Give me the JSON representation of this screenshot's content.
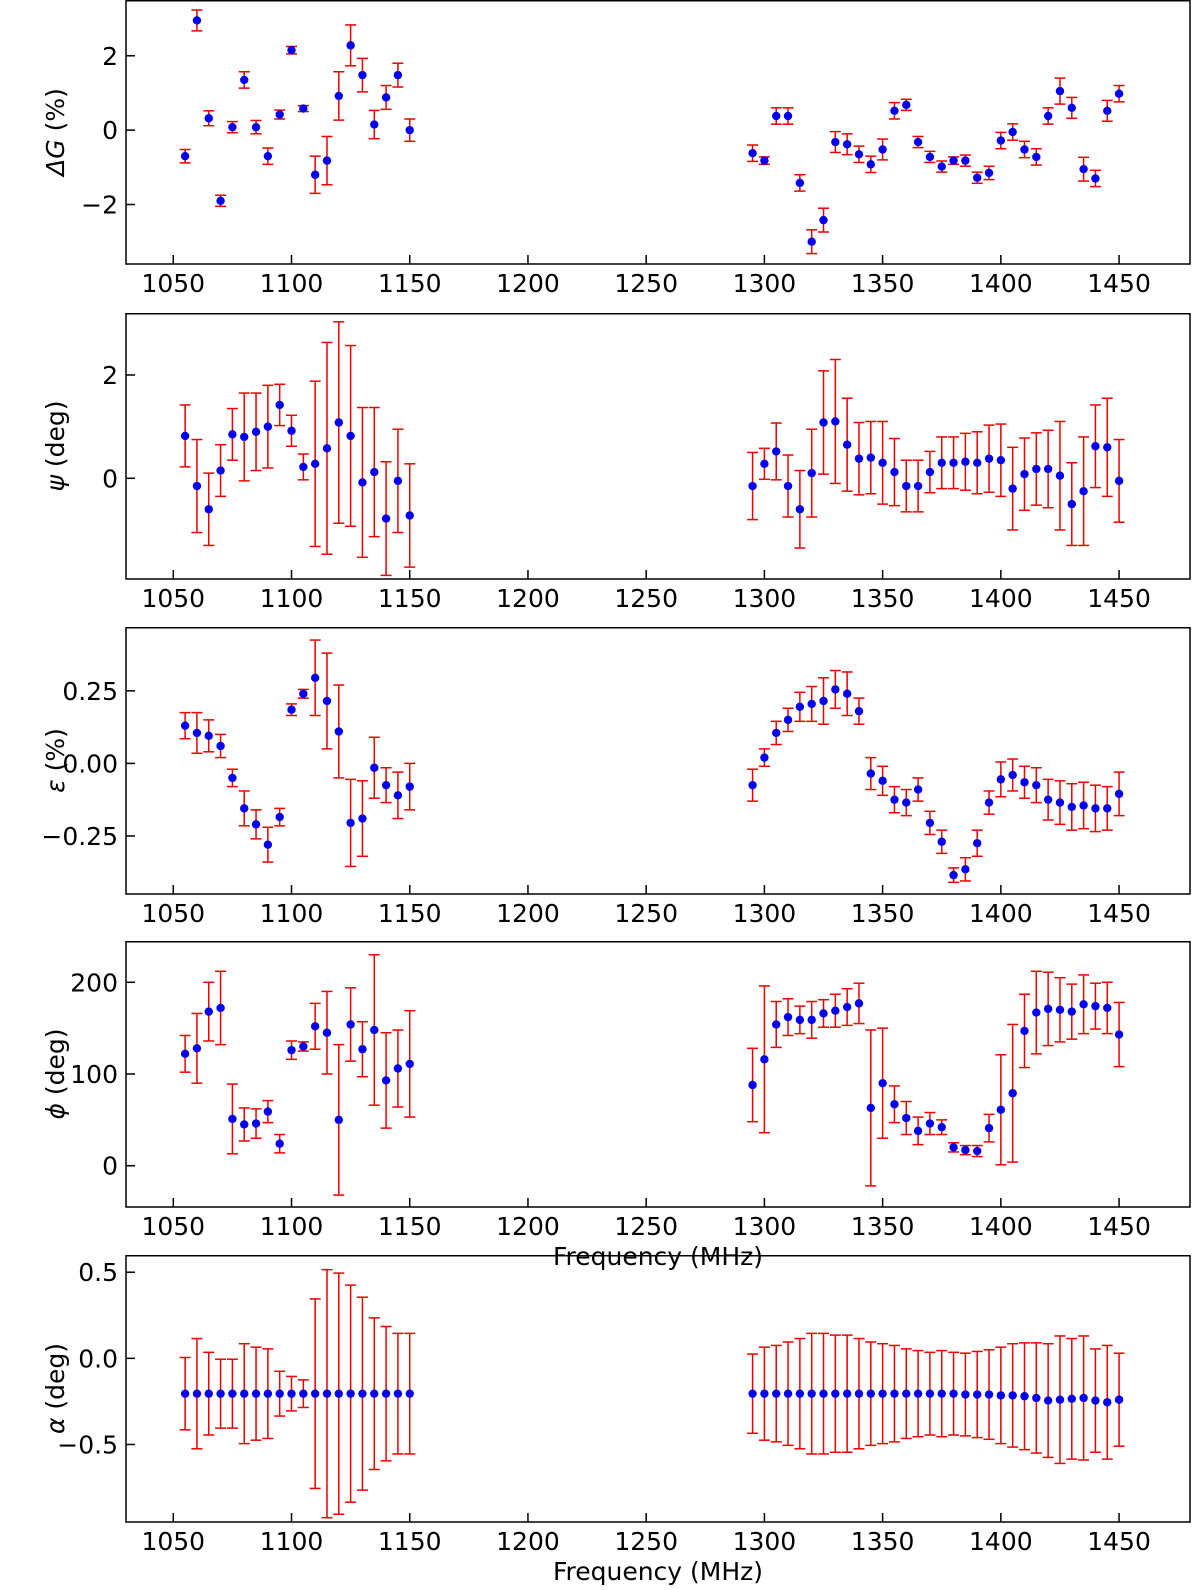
{
  "chart_data": [
    {
      "type": "scatter",
      "ylabel_symbol": "ΔG",
      "ylabel_italic": true,
      "ylabel_unit": " (%)",
      "ylabel_full": "ΔG (%)",
      "xlabel": "",
      "xlim": [
        1030,
        1480
      ],
      "ylim": [
        -3.6,
        3.5
      ],
      "xticks": [
        1050,
        1100,
        1150,
        1200,
        1250,
        1300,
        1350,
        1400,
        1450
      ],
      "yticks": [
        -2,
        0,
        2
      ],
      "x": [
        1055,
        1060,
        1065,
        1070,
        1075,
        1080,
        1085,
        1090,
        1095,
        1100,
        1105,
        1110,
        1115,
        1120,
        1125,
        1130,
        1135,
        1140,
        1145,
        1150,
        1295,
        1300,
        1305,
        1310,
        1315,
        1320,
        1325,
        1330,
        1335,
        1340,
        1345,
        1350,
        1355,
        1360,
        1365,
        1370,
        1375,
        1380,
        1385,
        1390,
        1395,
        1400,
        1405,
        1410,
        1415,
        1420,
        1425,
        1430,
        1435,
        1440,
        1445,
        1450
      ],
      "y": [
        -0.7,
        2.95,
        0.32,
        -1.9,
        0.08,
        1.35,
        0.08,
        -0.7,
        0.42,
        2.15,
        0.58,
        -1.2,
        -0.82,
        0.92,
        2.28,
        1.48,
        0.15,
        0.88,
        1.48,
        0.0,
        -0.62,
        -0.82,
        0.38,
        0.38,
        -1.42,
        -3.0,
        -2.42,
        -0.32,
        -0.38,
        -0.65,
        -0.92,
        -0.52,
        0.52,
        0.68,
        -0.32,
        -0.72,
        -0.98,
        -0.82,
        -0.82,
        -1.28,
        -1.15,
        -0.28,
        -0.05,
        -0.52,
        -0.72,
        0.38,
        1.05,
        0.6,
        -1.05,
        -1.3,
        0.52,
        0.98
      ],
      "err": [
        0.18,
        0.28,
        0.2,
        0.15,
        0.15,
        0.22,
        0.18,
        0.22,
        0.12,
        0.1,
        0.08,
        0.5,
        0.65,
        0.65,
        0.55,
        0.45,
        0.38,
        0.32,
        0.32,
        0.3,
        0.22,
        0.1,
        0.22,
        0.22,
        0.22,
        0.32,
        0.32,
        0.28,
        0.28,
        0.22,
        0.22,
        0.28,
        0.22,
        0.15,
        0.15,
        0.15,
        0.15,
        0.1,
        0.15,
        0.15,
        0.18,
        0.22,
        0.22,
        0.22,
        0.22,
        0.22,
        0.35,
        0.28,
        0.32,
        0.22,
        0.28,
        0.22
      ]
    },
    {
      "type": "scatter",
      "ylabel_symbol": "ψ",
      "ylabel_italic": true,
      "ylabel_unit": " (deg)",
      "ylabel_full": "ψ (deg)",
      "xlabel": "",
      "xlim": [
        1030,
        1480
      ],
      "ylim": [
        -1.95,
        3.2
      ],
      "xticks": [
        1050,
        1100,
        1150,
        1200,
        1250,
        1300,
        1350,
        1400,
        1450
      ],
      "yticks": [
        0,
        2
      ],
      "x": [
        1055,
        1060,
        1065,
        1070,
        1075,
        1080,
        1085,
        1090,
        1095,
        1100,
        1105,
        1110,
        1115,
        1120,
        1125,
        1130,
        1135,
        1140,
        1145,
        1150,
        1295,
        1300,
        1305,
        1310,
        1315,
        1320,
        1325,
        1330,
        1335,
        1340,
        1345,
        1350,
        1355,
        1360,
        1365,
        1370,
        1375,
        1380,
        1385,
        1390,
        1395,
        1400,
        1405,
        1410,
        1415,
        1420,
        1425,
        1430,
        1435,
        1440,
        1445,
        1450
      ],
      "y": [
        0.82,
        -0.15,
        -0.6,
        0.15,
        0.85,
        0.8,
        0.9,
        1.0,
        1.42,
        0.92,
        0.22,
        0.28,
        0.58,
        1.08,
        0.82,
        -0.08,
        0.12,
        -0.78,
        -0.05,
        -0.72,
        -0.15,
        0.28,
        0.52,
        -0.15,
        -0.6,
        0.1,
        1.08,
        1.1,
        0.65,
        0.38,
        0.4,
        0.3,
        0.12,
        -0.15,
        -0.15,
        0.12,
        0.3,
        0.3,
        0.32,
        0.3,
        0.38,
        0.35,
        -0.2,
        0.08,
        0.18,
        0.18,
        0.05,
        -0.5,
        -0.25,
        0.62,
        0.6,
        -0.05
      ],
      "err": [
        0.6,
        0.9,
        0.7,
        0.5,
        0.5,
        0.85,
        0.75,
        0.8,
        0.4,
        0.3,
        0.25,
        1.6,
        2.05,
        1.95,
        1.75,
        1.45,
        1.25,
        1.1,
        1.0,
        1.0,
        0.65,
        0.3,
        0.55,
        0.6,
        0.75,
        0.85,
        1.0,
        1.2,
        0.9,
        0.7,
        0.7,
        0.8,
        0.65,
        0.5,
        0.5,
        0.4,
        0.5,
        0.5,
        0.55,
        0.6,
        0.65,
        0.7,
        0.8,
        0.7,
        0.7,
        0.75,
        1.05,
        0.8,
        1.05,
        0.8,
        0.95,
        0.8
      ]
    },
    {
      "type": "scatter",
      "ylabel_symbol": "ε",
      "ylabel_italic": true,
      "ylabel_unit": " (%)",
      "ylabel_full": "ε (%)",
      "xlabel": "",
      "xlim": [
        1030,
        1480
      ],
      "ylim": [
        -0.45,
        0.47
      ],
      "xticks": [
        1050,
        1100,
        1150,
        1200,
        1250,
        1300,
        1350,
        1400,
        1450
      ],
      "yticks": [
        -0.25,
        0.0,
        0.25
      ],
      "ytick_labels": [
        "−0.25",
        "0.00",
        "0.25"
      ],
      "x": [
        1055,
        1060,
        1065,
        1070,
        1075,
        1080,
        1085,
        1090,
        1095,
        1100,
        1105,
        1110,
        1115,
        1120,
        1125,
        1130,
        1135,
        1140,
        1145,
        1150,
        1295,
        1300,
        1305,
        1310,
        1315,
        1320,
        1325,
        1330,
        1335,
        1340,
        1345,
        1350,
        1355,
        1360,
        1365,
        1370,
        1375,
        1380,
        1385,
        1390,
        1395,
        1400,
        1405,
        1410,
        1415,
        1420,
        1425,
        1430,
        1435,
        1440,
        1445,
        1450
      ],
      "y": [
        0.13,
        0.105,
        0.095,
        0.06,
        -0.05,
        -0.155,
        -0.21,
        -0.28,
        -0.185,
        0.185,
        0.24,
        0.295,
        0.215,
        0.11,
        -0.205,
        -0.19,
        -0.015,
        -0.075,
        -0.11,
        -0.08,
        -0.075,
        0.02,
        0.105,
        0.15,
        0.195,
        0.205,
        0.215,
        0.255,
        0.24,
        0.18,
        -0.035,
        -0.06,
        -0.125,
        -0.135,
        -0.09,
        -0.205,
        -0.27,
        -0.385,
        -0.365,
        -0.275,
        -0.135,
        -0.055,
        -0.04,
        -0.065,
        -0.075,
        -0.125,
        -0.135,
        -0.15,
        -0.145,
        -0.155,
        -0.155,
        -0.105
      ],
      "err": [
        0.045,
        0.07,
        0.055,
        0.04,
        0.03,
        0.06,
        0.05,
        0.06,
        0.03,
        0.02,
        0.015,
        0.13,
        0.165,
        0.16,
        0.15,
        0.13,
        0.105,
        0.06,
        0.08,
        0.08,
        0.055,
        0.03,
        0.04,
        0.04,
        0.05,
        0.06,
        0.08,
        0.065,
        0.075,
        0.045,
        0.055,
        0.05,
        0.045,
        0.045,
        0.04,
        0.04,
        0.04,
        0.025,
        0.04,
        0.045,
        0.04,
        0.06,
        0.055,
        0.055,
        0.06,
        0.07,
        0.075,
        0.08,
        0.08,
        0.08,
        0.075,
        0.075
      ]
    },
    {
      "type": "scatter",
      "ylabel_symbol": "ϕ",
      "ylabel_italic": true,
      "ylabel_unit": " (deg)",
      "ylabel_full": "ϕ (deg)",
      "xlabel": "Frequency (MHz)",
      "xlim": [
        1030,
        1480
      ],
      "ylim": [
        -45,
        245
      ],
      "xticks": [
        1050,
        1100,
        1150,
        1200,
        1250,
        1300,
        1350,
        1400,
        1450
      ],
      "yticks": [
        0,
        100,
        200
      ],
      "x": [
        1055,
        1060,
        1065,
        1070,
        1075,
        1080,
        1085,
        1090,
        1095,
        1100,
        1105,
        1110,
        1115,
        1120,
        1125,
        1130,
        1135,
        1140,
        1145,
        1150,
        1295,
        1300,
        1305,
        1310,
        1315,
        1320,
        1325,
        1330,
        1335,
        1340,
        1345,
        1350,
        1355,
        1360,
        1365,
        1370,
        1375,
        1380,
        1385,
        1390,
        1395,
        1400,
        1405,
        1410,
        1415,
        1420,
        1425,
        1430,
        1435,
        1440,
        1445,
        1450
      ],
      "y": [
        122,
        128,
        168,
        172,
        51,
        45,
        46,
        59,
        24,
        126,
        130,
        152,
        145,
        50,
        154,
        127,
        148,
        93,
        106,
        111,
        88,
        116,
        154,
        162,
        159,
        159,
        166,
        169,
        173,
        177,
        63,
        90,
        67,
        52,
        38,
        46,
        42,
        20,
        17,
        16,
        41,
        61,
        79,
        147,
        167,
        171,
        170,
        168,
        176,
        174,
        172,
        143
      ],
      "err": [
        20,
        38,
        32,
        40,
        38,
        18,
        16,
        12,
        10,
        10,
        5,
        25,
        45,
        82,
        40,
        30,
        82,
        52,
        42,
        58,
        40,
        80,
        25,
        20,
        15,
        20,
        15,
        18,
        20,
        22,
        85,
        60,
        20,
        18,
        15,
        12,
        8,
        5,
        5,
        6,
        15,
        60,
        75,
        40,
        45,
        40,
        35,
        30,
        32,
        25,
        28,
        35
      ]
    },
    {
      "type": "scatter",
      "ylabel_symbol": "α",
      "ylabel_italic": true,
      "ylabel_unit": " (deg)",
      "ylabel_full": "α (deg)",
      "xlabel": "Frequency (MHz)",
      "xlim": [
        1030,
        1480
      ],
      "ylim": [
        -0.95,
        0.6
      ],
      "xticks": [
        1050,
        1100,
        1150,
        1200,
        1250,
        1300,
        1350,
        1400,
        1450
      ],
      "yticks": [
        -0.5,
        0.0,
        0.5
      ],
      "ytick_labels": [
        "−0.5",
        "0.0",
        "0.5"
      ],
      "x": [
        1055,
        1060,
        1065,
        1070,
        1075,
        1080,
        1085,
        1090,
        1095,
        1100,
        1105,
        1110,
        1115,
        1120,
        1125,
        1130,
        1135,
        1140,
        1145,
        1150,
        1295,
        1300,
        1305,
        1310,
        1315,
        1320,
        1325,
        1330,
        1335,
        1340,
        1345,
        1350,
        1355,
        1360,
        1365,
        1370,
        1375,
        1380,
        1385,
        1390,
        1395,
        1400,
        1405,
        1410,
        1415,
        1420,
        1425,
        1430,
        1435,
        1440,
        1445,
        1450
      ],
      "y": [
        -0.205,
        -0.205,
        -0.205,
        -0.205,
        -0.205,
        -0.205,
        -0.205,
        -0.205,
        -0.205,
        -0.205,
        -0.205,
        -0.205,
        -0.205,
        -0.205,
        -0.205,
        -0.205,
        -0.205,
        -0.205,
        -0.205,
        -0.205,
        -0.205,
        -0.205,
        -0.205,
        -0.205,
        -0.205,
        -0.205,
        -0.205,
        -0.205,
        -0.205,
        -0.205,
        -0.205,
        -0.205,
        -0.205,
        -0.205,
        -0.205,
        -0.205,
        -0.205,
        -0.205,
        -0.21,
        -0.21,
        -0.21,
        -0.215,
        -0.215,
        -0.22,
        -0.23,
        -0.245,
        -0.24,
        -0.235,
        -0.23,
        -0.245,
        -0.255,
        -0.24
      ],
      "err": [
        0.21,
        0.32,
        0.24,
        0.2,
        0.2,
        0.29,
        0.27,
        0.26,
        0.13,
        0.1,
        0.08,
        0.55,
        0.72,
        0.7,
        0.63,
        0.56,
        0.44,
        0.39,
        0.35,
        0.35,
        0.23,
        0.27,
        0.28,
        0.3,
        0.32,
        0.35,
        0.35,
        0.34,
        0.34,
        0.32,
        0.3,
        0.29,
        0.28,
        0.26,
        0.25,
        0.24,
        0.25,
        0.24,
        0.24,
        0.25,
        0.26,
        0.28,
        0.3,
        0.31,
        0.32,
        0.33,
        0.37,
        0.35,
        0.36,
        0.3,
        0.33,
        0.27
      ]
    }
  ],
  "colors": {
    "marker": "#0000ee",
    "errorbar": "#ee0000",
    "axis": "#000000"
  }
}
